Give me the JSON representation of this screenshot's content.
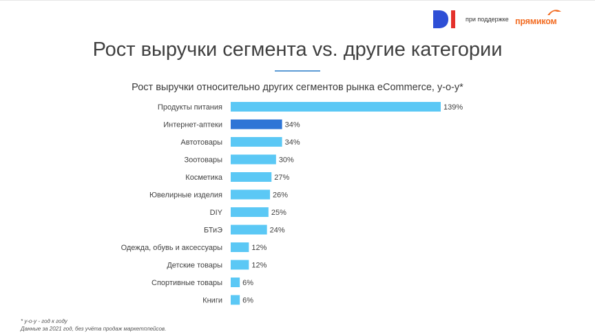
{
  "header": {
    "logo_di": "DI",
    "support_text": "при поддержке",
    "brand_text": "прямиком"
  },
  "title": "Рост выручки сегмента vs. другие категории",
  "colors": {
    "bar": "#5bc8f5",
    "highlight": "#2e75d6",
    "rule": "#5b9bd5",
    "di_blue": "#2e4fd6",
    "di_red": "#e4312b",
    "brand": "#f26b21"
  },
  "chart_data": {
    "type": "bar",
    "orientation": "horizontal",
    "title": "Рост выручки относительно других сегментов рынка eCommerce, y-o-y*",
    "categories": [
      "Продукты питания",
      "Интернет-аптеки",
      "Автотовары",
      "Зоотовары",
      "Косметика",
      "Ювелирные изделия",
      "DIY",
      "БТиЭ",
      "Одежда, обувь и аксессуары",
      "Детские товары",
      "Спортивные товары",
      "Книги"
    ],
    "values": [
      139,
      34,
      34,
      30,
      27,
      26,
      25,
      24,
      12,
      12,
      6,
      6
    ],
    "value_labels": [
      "139%",
      "34%",
      "34%",
      "30%",
      "27%",
      "26%",
      "25%",
      "24%",
      "12%",
      "12%",
      "6%",
      "6%"
    ],
    "highlighted_category": "Интернет-аптеки",
    "unit": "%",
    "xlim": [
      0,
      139
    ],
    "grid": false,
    "legend": "none"
  },
  "footnote": {
    "line1": "* y-o-y - год к году",
    "line2": "Данные за 2021 год, без учёта продаж маркетплейсов."
  }
}
